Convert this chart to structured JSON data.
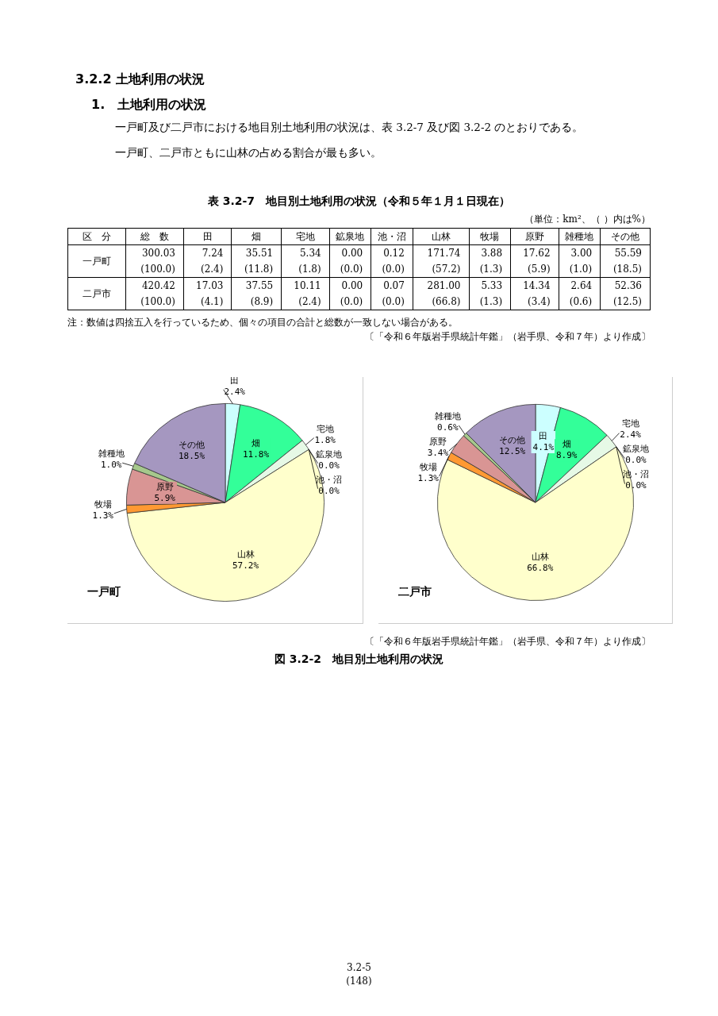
{
  "chart_data": [
    {
      "type": "other",
      "title": "3.2.2 土地利用の状況",
      "subtitle": "1.　土地利用の状況",
      "ylabel": "区　分",
      "categories": [
        "総　数",
        "田",
        "畑",
        "宅地",
        "鉱泉地",
        "池・沼",
        "山林",
        "牧場",
        "原野",
        "雑種地",
        "その他"
      ],
      "y_categories": [
        "一戸町",
        null,
        "二戸市",
        null
      ],
      "cell_labels": [
        [
          "300.03",
          "7.24",
          "35.51",
          "5.34",
          "0.00",
          "0.12",
          "171.74",
          "3.88",
          "17.62",
          "3.00",
          "55.59"
        ],
        [
          "(100.0)",
          "(2.4)",
          "(11.8)",
          "(1.8)",
          "(0.0)",
          "(0.0)",
          "(57.2)",
          "(1.3)",
          "(5.9)",
          "(1.0)",
          "(18.5)"
        ],
        [
          "420.42",
          "17.03",
          "37.55",
          "10.11",
          "0.00",
          "0.07",
          "281.00",
          "5.33",
          "14.34",
          "2.64",
          "52.36"
        ],
        [
          "(100.0)",
          "(4.1)",
          "(8.9)",
          "(2.4)",
          "(0.0)",
          "(0.0)",
          "(66.8)",
          "(1.3)",
          "(3.4)",
          "(0.6)",
          "(12.5)"
        ]
      ],
      "annotations": [
        "一戸町及び二戸市における地目別土地利用の状況は、表 3.2-7 及び図 3.2-2 のとおりである。",
        "一戸町、二戸市ともに山林の占める割合が最も多い。",
        "表 3.2-7　地目別土地利用の状況（令和５年１月１日現在）",
        "（単位：km²、（ ）内は%）",
        "注：数値は四捨五入を行っているため、個々の項目の合計と総数が一致しない場合がある。",
        "〔「令和６年版岩手県統計年鑑」（岩手県、令和７年）より作成〕"
      ]
    },
    {
      "type": "pie",
      "title": "一戸町",
      "categories": [
        "田",
        "畑",
        "宅地",
        "鉱泉地",
        "池・沼",
        "山林",
        "牧場",
        "原野",
        "雑種地",
        "その他"
      ],
      "values": [
        2.4,
        11.8,
        1.8,
        0.0,
        0.0,
        57.2,
        1.3,
        5.9,
        1.0,
        18.5
      ],
      "value_labels": [
        "2.4%",
        "11.8%",
        "1.8%",
        "0.0%",
        "0.0%",
        "57.2%",
        "1.3%",
        "5.9%",
        "1.0%",
        "18.5%"
      ],
      "colors": [
        "#ccffff",
        "#33ff99",
        "#e6f9e6",
        "#ffffff",
        "#ffffff",
        "#ffffcc",
        "#ff9933",
        "#d99594",
        "#a6c88c",
        "#a597c0"
      ]
    },
    {
      "type": "pie",
      "title": "二戸市",
      "categories": [
        "田",
        "畑",
        "宅地",
        "鉱泉地",
        "池・沼",
        "山林",
        "牧場",
        "原野",
        "雑種地",
        "その他"
      ],
      "values": [
        4.1,
        8.9,
        2.4,
        0.0,
        0.0,
        66.8,
        1.3,
        3.4,
        0.6,
        12.5
      ],
      "value_labels": [
        "4.1%",
        "8.9%",
        "2.4%",
        "0.0%",
        "0.0%",
        "66.8%",
        "1.3%",
        "3.4%",
        "0.6%",
        "12.5%"
      ],
      "colors": [
        "#ccffff",
        "#33ff99",
        "#e6f9e6",
        "#ffffff",
        "#ffffff",
        "#ffffcc",
        "#ff9933",
        "#d99594",
        "#a6c88c",
        "#a597c0"
      ],
      "annotations": [
        "〔「令和６年版岩手県統計年鑑」（岩手県、令和７年）より作成〕",
        "図 3.2-2　地目別土地利用の状況"
      ]
    },
    {
      "type": "other",
      "annotations": [
        "3.2-5",
        "(148)"
      ]
    }
  ]
}
